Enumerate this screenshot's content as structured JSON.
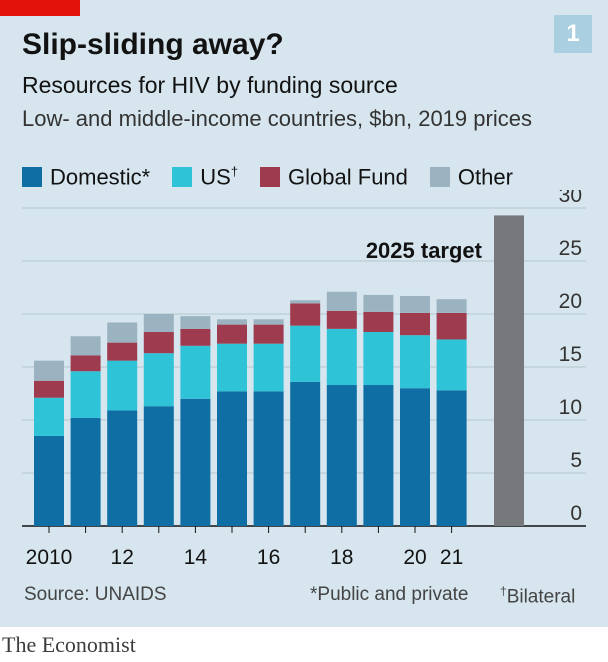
{
  "header": {
    "chart_number": "1",
    "title": "Slip-sliding away?",
    "subtitle": "Resources for HIV by funding source",
    "subtitle2": "Low- and middle-income countries, $bn, 2019 prices"
  },
  "legend": [
    {
      "label": "Domestic*",
      "sup": "",
      "color": "#0f6ea3"
    },
    {
      "label": "US",
      "sup": "†",
      "color": "#2ec3d6"
    },
    {
      "label": "Global Fund",
      "sup": "",
      "color": "#9e3b4e"
    },
    {
      "label": "Other",
      "sup": "",
      "color": "#9bb3c0"
    }
  ],
  "chart_data": {
    "type": "bar",
    "stacked": true,
    "categories": [
      "2010",
      "2011",
      "2012",
      "2013",
      "2014",
      "2015",
      "2016",
      "2017",
      "2018",
      "2019",
      "2020",
      "2021"
    ],
    "x_tick_labels": [
      "2010",
      "",
      "12",
      "",
      "14",
      "",
      "16",
      "",
      "18",
      "",
      "20",
      "21"
    ],
    "series": [
      {
        "name": "Domestic*",
        "color": "#0f6ea3",
        "values": [
          8.5,
          10.2,
          10.9,
          11.3,
          12.0,
          12.7,
          12.7,
          13.6,
          13.3,
          13.3,
          13.0,
          12.8
        ]
      },
      {
        "name": "US†",
        "color": "#2ec3d6",
        "values": [
          3.6,
          4.4,
          4.7,
          5.0,
          5.0,
          4.5,
          4.5,
          5.3,
          5.3,
          5.0,
          5.0,
          4.8
        ]
      },
      {
        "name": "Global Fund",
        "color": "#9e3b4e",
        "values": [
          1.6,
          1.5,
          1.7,
          2.0,
          1.6,
          1.8,
          1.8,
          2.1,
          1.7,
          1.9,
          2.1,
          2.5
        ]
      },
      {
        "name": "Other",
        "color": "#9bb3c0",
        "values": [
          1.9,
          1.8,
          1.9,
          1.7,
          1.2,
          0.5,
          0.5,
          0.3,
          1.8,
          1.6,
          1.6,
          1.3
        ]
      }
    ],
    "target": {
      "label": "2025 target",
      "value": 29.3,
      "color": "#77787b"
    },
    "ylim": [
      0,
      30
    ],
    "yticks": [
      0,
      5,
      10,
      15,
      20,
      25,
      30
    ],
    "y_axis_side": "right",
    "grid": true
  },
  "footer": {
    "source": "Source: UNAIDS",
    "note_public": "*Public and private",
    "note_bilateral_mark": "†",
    "note_bilateral": "Bilateral",
    "brand": "The Economist"
  }
}
